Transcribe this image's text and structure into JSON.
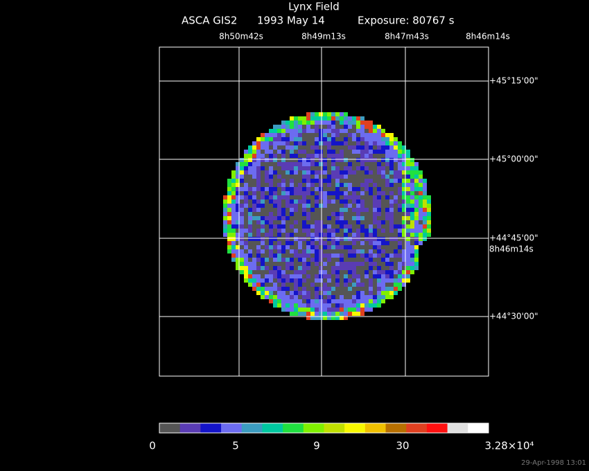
{
  "header": {
    "title": "Lynx Field",
    "instrument": "ASCA GIS2",
    "date": "1993 May 14",
    "exposure": "Exposure: 80767 s"
  },
  "ra_labels": [
    "8h50m42s",
    "8h49m13s",
    "8h47m43s",
    "8h46m14s"
  ],
  "ra_extra_label": "8h46m14s",
  "dec_labels": [
    "+45°15'00\"",
    "+45°00'00\"",
    "+44°45'00\"",
    "+44°30'00\""
  ],
  "colorbar": {
    "colors": [
      "#555555",
      "#5a3cb4",
      "#1414c8",
      "#6c6cf0",
      "#3c9cc0",
      "#00c8a0",
      "#20e040",
      "#80f000",
      "#c0e000",
      "#f8f800",
      "#f0c000",
      "#b87000",
      "#e04020",
      "#ff1010",
      "#e0e0e0",
      "#ffffff"
    ],
    "labels": [
      "0",
      "5",
      "9",
      "30",
      "3.28×10⁴"
    ]
  },
  "timestamp": "29-Apr-1998 13:01"
}
